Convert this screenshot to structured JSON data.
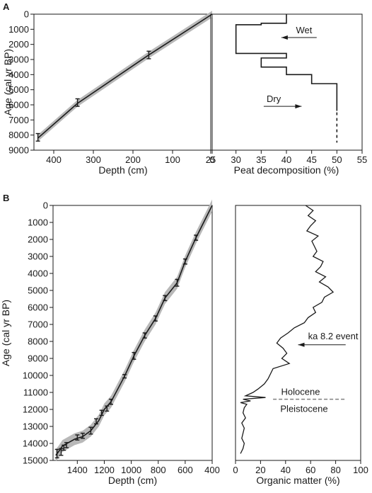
{
  "chart_data": [
    {
      "id": "A_left",
      "panel_label": "A",
      "type": "line",
      "xlabel": "Depth (cm)",
      "ylabel": "Age (cal yr BP)",
      "x_reversed": true,
      "y_reversed": true,
      "xlim": [
        450,
        0
      ],
      "ylim": [
        0,
        9000
      ],
      "xticks": [
        400,
        300,
        200,
        100,
        0
      ],
      "yticks": [
        0,
        1000,
        2000,
        3000,
        4000,
        5000,
        6000,
        7000,
        8000,
        9000
      ],
      "xtick_labels": [
        "400",
        "300",
        "200",
        "100",
        "0"
      ],
      "ytick_labels": [
        "0",
        "1000",
        "2000",
        "3000",
        "4000",
        "5000",
        "6000",
        "7000",
        "8000",
        "9000"
      ],
      "line": {
        "x": [
          0,
          160,
          340,
          440
        ],
        "y": [
          0,
          2700,
          5900,
          8200
        ]
      },
      "band_width": 220,
      "dates": [
        {
          "x": 160,
          "y": 2700,
          "lo": 2450,
          "hi": 2950
        },
        {
          "x": 340,
          "y": 5850,
          "lo": 5600,
          "hi": 6100
        },
        {
          "x": 440,
          "y": 8150,
          "lo": 7900,
          "hi": 8400
        }
      ]
    },
    {
      "id": "A_right",
      "type": "line",
      "xlabel": "Peat decomposition (%)",
      "y_reversed": true,
      "xlim": [
        25,
        55
      ],
      "ylim": [
        0,
        9000
      ],
      "xticks": [
        25,
        30,
        35,
        40,
        45,
        50,
        55
      ],
      "xtick_labels": [
        "25",
        "30",
        "35",
        "40",
        "45",
        "50",
        "55"
      ],
      "step": {
        "values": [
          40,
          35,
          30,
          40,
          35,
          40,
          45,
          50
        ],
        "bounds": [
          [
            0,
            600
          ],
          [
            600,
            700
          ],
          [
            700,
            2600
          ],
          [
            2600,
            2900
          ],
          [
            2900,
            3500
          ],
          [
            3500,
            4000
          ],
          [
            4000,
            4600
          ],
          [
            4600,
            6400
          ]
        ]
      },
      "dotted_tail": {
        "x": 50,
        "from": 6500,
        "to": 8500
      },
      "annotations": [
        {
          "text": "Wet",
          "x": 43.5,
          "y": 1500,
          "arrow_from": 46,
          "arrow_to": 39
        },
        {
          "text": "Dry",
          "x": 37.5,
          "y": 6050,
          "arrow_from": 35.5,
          "arrow_to": 43
        }
      ]
    },
    {
      "id": "B_left",
      "panel_label": "B",
      "type": "line",
      "xlabel": "Depth (cm)",
      "ylabel": "Age (cal yr BP)",
      "x_reversed": true,
      "y_reversed": true,
      "xlim": [
        1580,
        400
      ],
      "ylim": [
        0,
        15000
      ],
      "xticks": [
        1400,
        1200,
        1000,
        800,
        600,
        400
      ],
      "yticks": [
        0,
        1000,
        2000,
        3000,
        4000,
        5000,
        6000,
        7000,
        8000,
        9000,
        10000,
        11000,
        12000,
        13000,
        14000,
        15000
      ],
      "xtick_labels": [
        "1400",
        "1200",
        "1000",
        "800",
        "600",
        "400"
      ],
      "ytick_labels": [
        "0",
        "1000",
        "2000",
        "3000",
        "4000",
        "5000",
        "6000",
        "7000",
        "8000",
        "9000",
        "10000",
        "11000",
        "12000",
        "13000",
        "14000",
        "15000"
      ],
      "line": {
        "x": [
          400,
          520,
          600,
          660,
          750,
          820,
          900,
          980,
          1050,
          1150,
          1200,
          1240,
          1300,
          1360,
          1420,
          1510,
          1540,
          1560
        ],
        "y": [
          0,
          1900,
          3300,
          4550,
          5450,
          6650,
          7650,
          8850,
          10050,
          11550,
          12000,
          12650,
          13250,
          13600,
          13750,
          14150,
          14500,
          14700
        ]
      },
      "band_width": 350,
      "dates": [
        {
          "x": 520,
          "y": 1900,
          "lo": 1750,
          "hi": 2050
        },
        {
          "x": 600,
          "y": 3300,
          "lo": 3150,
          "hi": 3450
        },
        {
          "x": 660,
          "y": 4550,
          "lo": 4350,
          "hi": 4750
        },
        {
          "x": 750,
          "y": 5450,
          "lo": 5300,
          "hi": 5600
        },
        {
          "x": 820,
          "y": 6650,
          "lo": 6500,
          "hi": 6800
        },
        {
          "x": 900,
          "y": 7650,
          "lo": 7500,
          "hi": 7800
        },
        {
          "x": 980,
          "y": 8850,
          "lo": 8650,
          "hi": 9050
        },
        {
          "x": 1050,
          "y": 10050,
          "lo": 9950,
          "hi": 10150
        },
        {
          "x": 1150,
          "y": 11550,
          "lo": 11400,
          "hi": 11700
        },
        {
          "x": 1180,
          "y": 11950,
          "lo": 11800,
          "hi": 12100
        },
        {
          "x": 1220,
          "y": 12200,
          "lo": 12050,
          "hi": 12350
        },
        {
          "x": 1260,
          "y": 12700,
          "lo": 12550,
          "hi": 12850
        },
        {
          "x": 1300,
          "y": 13250,
          "lo": 13050,
          "hi": 13450
        },
        {
          "x": 1360,
          "y": 13550,
          "lo": 13400,
          "hi": 13700
        },
        {
          "x": 1400,
          "y": 13650,
          "lo": 13500,
          "hi": 13800
        },
        {
          "x": 1480,
          "y": 14100,
          "lo": 13950,
          "hi": 14250
        },
        {
          "x": 1500,
          "y": 14250,
          "lo": 14100,
          "hi": 14400
        },
        {
          "x": 1520,
          "y": 14500,
          "lo": 14300,
          "hi": 14700
        },
        {
          "x": 1550,
          "y": 14600,
          "lo": 14350,
          "hi": 14850
        }
      ]
    },
    {
      "id": "B_right",
      "type": "line",
      "xlabel": "Organic matter (%)",
      "y_reversed": true,
      "xlim": [
        0,
        100
      ],
      "ylim": [
        0,
        15000
      ],
      "xticks": [
        0,
        20,
        40,
        60,
        80,
        100
      ],
      "xtick_labels": [
        "0",
        "20",
        "40",
        "60",
        "80",
        "100"
      ],
      "series": {
        "y": [
          0,
          300,
          600,
          900,
          1200,
          1500,
          1800,
          2100,
          2400,
          2700,
          3000,
          3300,
          3600,
          3900,
          4200,
          4500,
          4800,
          5100,
          5400,
          5700,
          6000,
          6300,
          6600,
          6900,
          7200,
          7500,
          7800,
          8100,
          8400,
          8700,
          9000,
          9300,
          9600,
          9900,
          10200,
          10500,
          10800,
          11000,
          11200,
          11300,
          11400,
          11500,
          11600,
          11700,
          11900,
          12200,
          12500,
          12800,
          13100,
          13400,
          13700,
          14000,
          14300,
          14600
        ],
        "values": [
          56,
          62,
          58,
          64,
          60,
          57,
          66,
          61,
          63,
          65,
          62,
          70,
          68,
          64,
          72,
          67,
          74,
          78,
          71,
          69,
          62,
          64,
          58,
          55,
          47,
          42,
          36,
          33,
          38,
          41,
          37,
          43,
          30,
          28,
          26,
          23,
          18,
          14,
          8,
          24,
          6,
          12,
          4,
          9,
          7,
          6,
          8,
          5,
          7,
          6,
          5,
          7,
          6,
          4
        ]
      },
      "boundary": {
        "y": 11400,
        "x_from": 30,
        "x_to": 88,
        "above": "Holocene",
        "below": "Pleistocene"
      },
      "annotations": [
        {
          "text": "ka 8.2 event",
          "y": 8200,
          "arrow_from": 88,
          "arrow_to": 50
        }
      ]
    }
  ]
}
